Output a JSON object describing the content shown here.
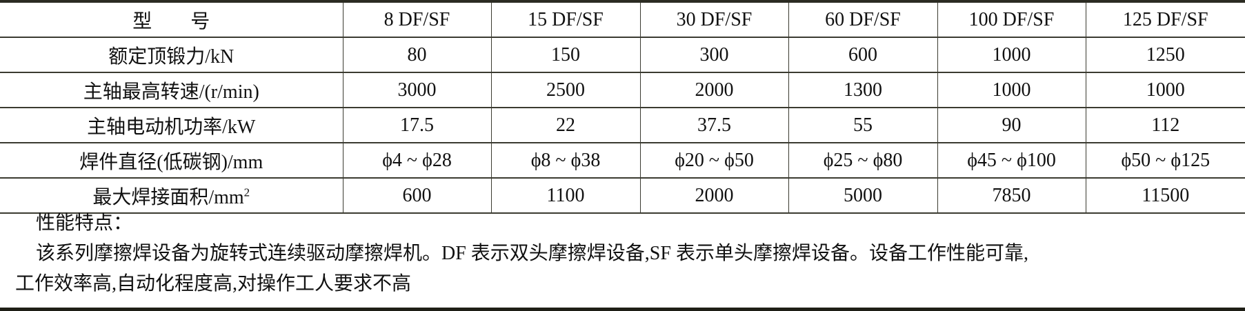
{
  "table": {
    "header": [
      "型　　号",
      "8 DF/SF",
      "15 DF/SF",
      "30 DF/SF",
      "60 DF/SF",
      "100 DF/SF",
      "125 DF/SF"
    ],
    "rows": [
      [
        "额定顶锻力/kN",
        "80",
        "150",
        "300",
        "600",
        "1000",
        "1250"
      ],
      [
        "主轴最高转速/(r/min)",
        "3000",
        "2500",
        "2000",
        "1300",
        "1000",
        "1000"
      ],
      [
        "主轴电动机功率/kW",
        "17.5",
        "22",
        "37.5",
        "55",
        "90",
        "112"
      ],
      [
        "焊件直径(低碳钢)/mm",
        "ϕ4 ~ ϕ28",
        "ϕ8 ~ ϕ38",
        "ϕ20 ~ ϕ50",
        "ϕ25 ~ ϕ80",
        "ϕ45 ~ ϕ100",
        "ϕ50 ~ ϕ125"
      ],
      [
        "最大焊接面积/mm",
        "600",
        "1100",
        "2000",
        "5000",
        "7850",
        "11500"
      ]
    ],
    "last_row_sup": "2"
  },
  "notes": {
    "title": "性能特点：",
    "line1": "该系列摩擦焊设备为旋转式连续驱动摩擦焊机。DF 表示双头摩擦焊设备,SF 表示单头摩擦焊设备。设备工作性能可靠,",
    "line2": "工作效率高,自动化程度高,对操作工人要求不高"
  }
}
